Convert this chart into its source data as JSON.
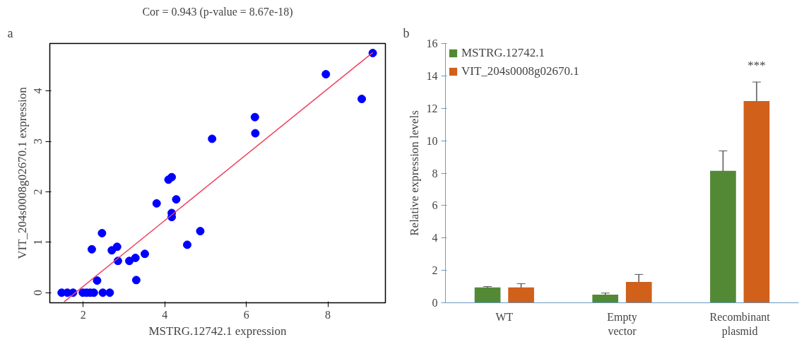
{
  "chart_data": [
    {
      "type": "scatter",
      "title": "Cor = 0.943 (p-value = 8.67e-18)",
      "xlabel": "MSTRG.12742.1 expression",
      "ylabel": "VIT_204s0008g02670.1 expression",
      "xlim": [
        1.18,
        9.41
      ],
      "ylim": [
        -0.2,
        4.94
      ],
      "xticks": [
        2,
        4,
        6,
        8
      ],
      "yticks": [
        0,
        1,
        2,
        3,
        4
      ],
      "grid": false,
      "annotations": [
        "a"
      ],
      "series": [
        {
          "type": "scatter",
          "marker": "circle",
          "color": "#0000ff",
          "x": [
            1.47,
            1.61,
            1.75,
            1.99,
            2.08,
            2.17,
            2.26,
            2.48,
            2.65,
            2.21,
            2.34,
            2.46,
            2.7,
            2.83,
            2.85,
            3.13,
            3.28,
            3.3,
            3.51,
            3.8,
            4.09,
            4.17,
            4.17,
            4.17,
            4.28,
            4.55,
            4.87,
            5.16,
            6.21,
            6.22,
            7.95,
            8.83,
            9.1
          ],
          "values": [
            0,
            0,
            0,
            0,
            0,
            0,
            0,
            0,
            0,
            0.86,
            0.24,
            1.18,
            0.84,
            0.91,
            0.63,
            0.63,
            0.69,
            0.25,
            0.77,
            1.77,
            2.24,
            2.29,
            1.58,
            1.5,
            1.85,
            0.95,
            1.22,
            3.05,
            3.48,
            3.16,
            4.33,
            3.84,
            4.75
          ]
        },
        {
          "type": "line",
          "color": "#f04060",
          "x": [
            1.53,
            9.1
          ],
          "values": [
            -0.18,
            4.76
          ]
        }
      ]
    },
    {
      "type": "bar",
      "ylabel": "Relative expression levels",
      "categories": [
        "WT",
        "Empty vector",
        "Recombinant plasmid"
      ],
      "ylim": [
        0,
        16
      ],
      "yticks": [
        0,
        2,
        4,
        6,
        8,
        10,
        12,
        14,
        16
      ],
      "grid": false,
      "legend": "top left",
      "annotations": [
        "b",
        "***"
      ],
      "series": [
        {
          "name": "MSTRG.12742.1",
          "color": "#538935",
          "values": [
            0.95,
            0.5,
            8.14
          ],
          "errors": [
            0.05,
            0.1,
            1.23
          ]
        },
        {
          "name": "VIT_204s0008g02670.1",
          "color": "#d0601a",
          "values": [
            0.95,
            1.29,
            12.45
          ],
          "errors": [
            0.23,
            0.46,
            1.17
          ]
        }
      ]
    }
  ]
}
